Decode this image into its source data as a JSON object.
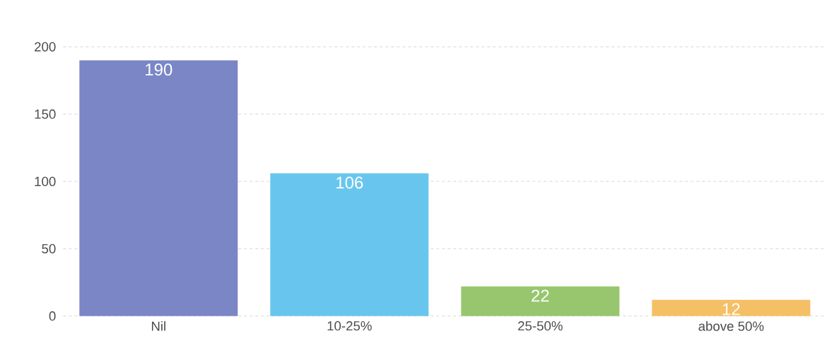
{
  "chart_data": {
    "type": "bar",
    "categories": [
      "Nil",
      "10-25%",
      "25-50%",
      "above 50%"
    ],
    "values": [
      190,
      106,
      22,
      12
    ],
    "colors": [
      "#7b86c6",
      "#68c6ee",
      "#97c66f",
      "#f5bf66"
    ],
    "ylim": [
      0,
      200
    ],
    "yticks": [
      0,
      50,
      100,
      150,
      200
    ],
    "grid": "y",
    "data_labels": true
  }
}
